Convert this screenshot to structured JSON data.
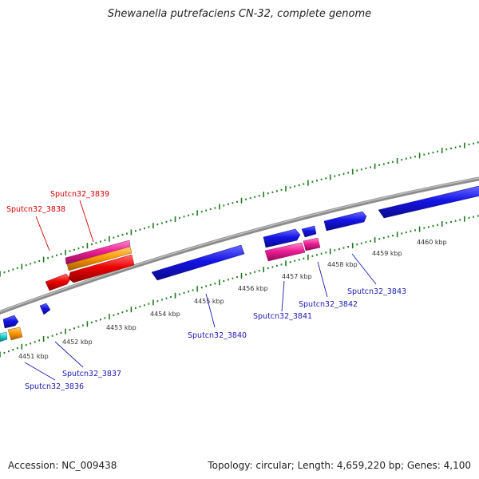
{
  "title": "Shewanella putrefaciens CN-32, complete genome",
  "footer": {
    "accession": "Accession: NC_009438",
    "summary": "Topology: circular; Length: 4,659,220 bp; Genes: 4,100"
  },
  "colors": {
    "backbone": "#8c8c8c",
    "tick": "#1e7a1e",
    "gene_blue": "#1414e6",
    "gene_red": "#ee0000",
    "gene_pink": "#ee1e96",
    "gene_orange": "#ff9900",
    "gene_cyan": "#22cccc",
    "label_blue": "#1a1ab4",
    "label_red": "#d40000"
  },
  "kbp_labels": [
    "4451 kbp",
    "4452 kbp",
    "4453 kbp",
    "4454 kbp",
    "4455 kbp",
    "4456 kbp",
    "4457 kbp",
    "4458 kbp",
    "4459 kbp",
    "4460 kbp"
  ],
  "gene_labels": {
    "g3836": "Sputcn32_3836",
    "g3837": "Sputcn32_3837",
    "g3838": "Sputcn32_3838",
    "g3839": "Sputcn32_3839",
    "g3840": "Sputcn32_3840",
    "g3841": "Sputcn32_3841",
    "g3842": "Sputcn32_3842",
    "g3843": "Sputcn32_3843"
  }
}
